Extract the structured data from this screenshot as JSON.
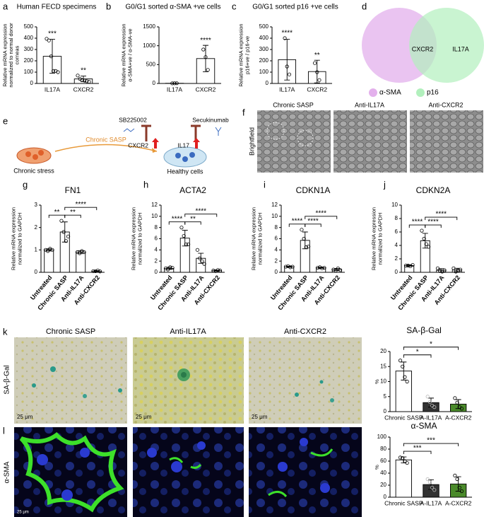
{
  "chart_data": [
    {
      "type": "bar",
      "title": "Human FECD specimens",
      "ylabel": "Relative mRNA expression normalized to normal donor corneas",
      "categories": [
        "IL17A",
        "CXCR2"
      ],
      "values": [
        240,
        40
      ],
      "errors": [
        150,
        25
      ],
      "points": [
        [
          395,
          380,
          240,
          110,
          110,
          100
        ],
        [
          70,
          40,
          30,
          25,
          20,
          15
        ]
      ],
      "colors": [
        "#ffffff",
        "#ffffff"
      ],
      "ylim": [
        0,
        500
      ],
      "yticks": [
        0,
        100,
        200,
        300,
        400,
        500
      ],
      "stars": [
        "***",
        "**"
      ]
    },
    {
      "type": "bar",
      "title": "G0/G1 sorted α-SMA +ve cells",
      "ylabel": "Relative mRNA expression α-SMA+ve / α-SMA-ve",
      "categories": [
        "IL17A",
        "CXCR2"
      ],
      "values": [
        5,
        660
      ],
      "errors": [
        2,
        350
      ],
      "points": [
        [
          3,
          5,
          6
        ],
        [
          900,
          700,
          360
        ]
      ],
      "colors": [
        "#ffffff",
        "#ffffff"
      ],
      "ylim": [
        0,
        1500
      ],
      "yticks": [
        0,
        500,
        1000,
        1500
      ],
      "stars": [
        null,
        "****"
      ]
    },
    {
      "type": "bar",
      "title": "G0/G1 sorted p16 +ve cells",
      "ylabel": "Relative mRNA expression p16+ve / p16-ve",
      "categories": [
        "IL17A",
        "CXCR2"
      ],
      "values": [
        210,
        105
      ],
      "errors": [
        180,
        100
      ],
      "points": [
        [
          400,
          150,
          80
        ],
        [
          180,
          100,
          30
        ]
      ],
      "colors": [
        "#ffffff",
        "#ffffff"
      ],
      "ylim": [
        0,
        500
      ],
      "yticks": [
        0,
        100,
        200,
        300,
        400,
        500
      ],
      "stars": [
        "****",
        "**"
      ]
    },
    {
      "type": "bar",
      "title": "FN1",
      "ylabel": "Relative mRNA expression normalized to GAPDH",
      "categories": [
        "Untreated",
        "Chronic SASP",
        "Anti-IL17A",
        "Anti-CXCR2"
      ],
      "values": [
        1,
        1.8,
        0.9,
        0.05
      ],
      "errors": [
        0.05,
        0.45,
        0.07,
        0.03
      ],
      "points": [
        [
          1.0,
          0.95,
          1.05,
          1.0
        ],
        [
          2.3,
          1.8,
          1.4,
          1.6
        ],
        [
          0.9,
          0.85,
          0.95,
          0.9
        ],
        [
          0.05,
          0.05,
          0.08,
          0.04
        ]
      ],
      "colors": [
        "#ffffff",
        "#ffffff",
        "#ffffff",
        "#ffffff"
      ],
      "ylim": [
        0,
        3
      ],
      "yticks": [
        0,
        1,
        2,
        3
      ],
      "brackets": [
        {
          "from": 0,
          "to": 1,
          "label": "**"
        },
        {
          "from": 1,
          "to": 2,
          "label": "**"
        },
        {
          "from": 1,
          "to": 3,
          "label": "****"
        }
      ]
    },
    {
      "type": "bar",
      "title": "ACTA2",
      "ylabel": "Relative mRNA expression normalized to GAPDH",
      "categories": [
        "Untreated",
        "Chronic SASP",
        "Anti-IL17A",
        "Anti-CXCR2"
      ],
      "values": [
        0.7,
        6.1,
        2.5,
        0.3
      ],
      "errors": [
        0.2,
        1.4,
        0.9,
        0.1
      ],
      "points": [
        [
          0.7,
          0.5,
          0.9,
          0.8
        ],
        [
          8,
          6.5,
          5,
          5
        ],
        [
          4,
          2.5,
          2,
          1.5
        ],
        [
          0.3,
          0.2,
          0.4,
          0.3
        ]
      ],
      "colors": [
        "#ffffff",
        "#ffffff",
        "#ffffff",
        "#ffffff"
      ],
      "ylim": [
        0,
        12
      ],
      "yticks": [
        0,
        2,
        4,
        6,
        8,
        10,
        12
      ],
      "brackets": [
        {
          "from": 0,
          "to": 1,
          "label": "****"
        },
        {
          "from": 1,
          "to": 2,
          "label": "**"
        },
        {
          "from": 1,
          "to": 3,
          "label": "****"
        }
      ]
    },
    {
      "type": "bar",
      "title": "CDKN1A",
      "ylabel": "Relative mRNA expression normalized to GAPDH",
      "categories": [
        "Untreated",
        "Chronic SASP",
        "Anti-IL17A",
        "Anti-CXCR2"
      ],
      "values": [
        1,
        5.7,
        0.8,
        0.5
      ],
      "errors": [
        0.1,
        1.5,
        0.1,
        0.2
      ],
      "points": [
        [
          1.0,
          1.1,
          0.9,
          1.0
        ],
        [
          7.6,
          6,
          4.5,
          4.6
        ],
        [
          0.8,
          0.9,
          0.7,
          0.8
        ],
        [
          0.5,
          0.3,
          0.7,
          0.4
        ]
      ],
      "colors": [
        "#ffffff",
        "#ffffff",
        "#ffffff",
        "#ffffff"
      ],
      "ylim": [
        0,
        12
      ],
      "yticks": [
        0,
        2,
        4,
        6,
        8,
        10,
        12
      ],
      "brackets": [
        {
          "from": 0,
          "to": 1,
          "label": "****"
        },
        {
          "from": 1,
          "to": 2,
          "label": "****"
        },
        {
          "from": 1,
          "to": 3,
          "label": "****"
        }
      ]
    },
    {
      "type": "bar",
      "title": "CDKN2A",
      "ylabel": "Relative mRNA expression normalized to GAPDH",
      "categories": [
        "Untreated",
        "Chronic SASP",
        "Anti-IL17A",
        "Anti-CXCR2"
      ],
      "values": [
        1,
        4.7,
        0.3,
        0.35
      ],
      "errors": [
        0.1,
        1.1,
        0.25,
        0.25
      ],
      "points": [
        [
          1,
          1,
          0.9,
          1.1
        ],
        [
          6.2,
          5,
          4.2,
          3.8
        ],
        [
          0.6,
          0.2,
          0.1,
          0.3
        ],
        [
          0.6,
          0.1,
          0.3,
          0.4
        ]
      ],
      "colors": [
        "#ffffff",
        "#ffffff",
        "#ffffff",
        "#ffffff"
      ],
      "ylim": [
        0,
        10
      ],
      "yticks": [
        0,
        2,
        4,
        6,
        8,
        10
      ],
      "brackets": [
        {
          "from": 0,
          "to": 1,
          "label": "****"
        },
        {
          "from": 1,
          "to": 2,
          "label": "****"
        },
        {
          "from": 1,
          "to": 3,
          "label": "****"
        }
      ]
    },
    {
      "type": "bar",
      "title": "SA-β-Gal",
      "ylabel": "%",
      "categories": [
        "Chronic SASP",
        "A-IL17A",
        "A-CXCR2"
      ],
      "values": [
        13.5,
        3,
        2.5
      ],
      "errors": [
        3,
        1.5,
        1.5
      ],
      "points": [
        [
          17,
          15,
          11.5,
          10
        ],
        [
          5,
          3.2,
          2,
          1.5
        ],
        [
          4.5,
          3,
          1.5,
          1
        ]
      ],
      "colors": [
        "#ffffff",
        "#333333",
        "#4a8a2a"
      ],
      "ylim": [
        0,
        20
      ],
      "yticks": [
        0,
        5,
        10,
        15,
        20
      ],
      "brackets": [
        {
          "from": 0,
          "to": 1,
          "label": "*"
        },
        {
          "from": 0,
          "to": 2,
          "label": "*"
        }
      ]
    },
    {
      "type": "bar",
      "title": "α-SMA",
      "ylabel": "%",
      "categories": [
        "Chronic SASP",
        "A-IL17A",
        "A-CXCR2"
      ],
      "values": [
        62,
        21,
        22
      ],
      "errors": [
        5,
        8,
        12
      ],
      "points": [
        [
          66,
          65,
          60,
          57
        ],
        [
          30,
          25,
          16,
          12
        ],
        [
          36,
          30,
          16,
          10
        ]
      ],
      "colors": [
        "#ffffff",
        "#333333",
        "#4a8a2a"
      ],
      "ylim": [
        0,
        100
      ],
      "yticks": [
        0,
        20,
        40,
        60,
        80,
        100
      ],
      "brackets": [
        {
          "from": 0,
          "to": 1,
          "label": "***"
        },
        {
          "from": 0,
          "to": 2,
          "label": "***"
        }
      ]
    }
  ],
  "panel_labels": [
    "a",
    "b",
    "c",
    "d",
    "e",
    "f",
    "g",
    "h",
    "i",
    "j",
    "k",
    "l"
  ],
  "venn": {
    "overlap": "CXCR2",
    "right_only": "IL17A",
    "legend": [
      "α-SMA",
      "p16"
    ]
  },
  "schematic": {
    "inhibitor_1": "SB225002",
    "inhibitor_2": "Secukinumab",
    "receptor_1": "CXCR2",
    "receptor_2": "IL17",
    "arrow": "Chronic SASP",
    "source": "Chronic stress",
    "target": "Healthy cells"
  },
  "brightfield": {
    "row_label": "Brightfield",
    "columns": [
      "Chronic SASP",
      "Anti-IL17A",
      "Anti-CXCR2"
    ]
  },
  "sa_beta_gal": {
    "row_label": "SA-β-Gal",
    "columns": [
      "Chronic SASP",
      "Anti-IL17A",
      "Anti-CXCR2"
    ],
    "scale_bar": "25 μm"
  },
  "alpha_sma": {
    "row_label": "α-SMA",
    "scale_bar": "25 μm"
  }
}
